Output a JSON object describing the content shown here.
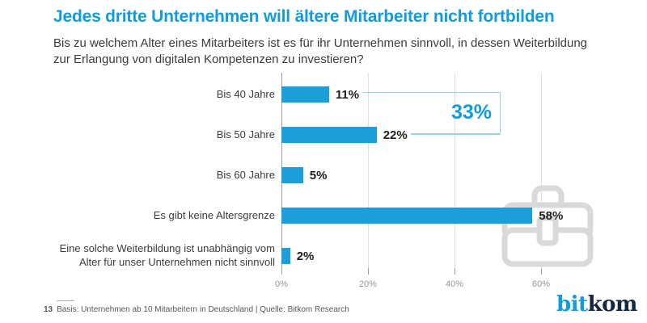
{
  "header": {
    "title": "Jedes dritte Unternehmen will ältere Mitarbeiter nicht fortbilden",
    "subtitle_line1": "Bis zu welchem Alter eines Mitarbeiters ist es für ihr Unternehmen sinnvoll, in dessen Weiterbildung",
    "subtitle_line2": "zur Erlangung von digitalen Kompetenzen zu investieren?"
  },
  "chart_data": {
    "type": "bar",
    "orientation": "horizontal",
    "categories": [
      "Bis 40 Jahre",
      "Bis 50 Jahre",
      "Bis 60 Jahre",
      "Es gibt keine Altersgrenze",
      "Eine solche Weiterbildung ist unabhängig vom Alter für unser Unternehmen nicht sinnvoll"
    ],
    "values": [
      11,
      22,
      5,
      58,
      2
    ],
    "value_labels": [
      "11%",
      "22%",
      "5%",
      "58%",
      "2%"
    ],
    "x_tick_values": [
      0,
      20,
      40,
      60
    ],
    "x_tick_labels": [
      "0%",
      "20%",
      "40%",
      "60%"
    ],
    "xlim": [
      0,
      80
    ],
    "grid": "vertical",
    "legend": "none",
    "bar_color": "#1b9ed9",
    "annotation": {
      "label": "33%",
      "applies_to": [
        "Bis 40 Jahre",
        "Bis 50 Jahre"
      ]
    }
  },
  "watermark": {
    "icon": "briefcase-icon",
    "color": "#d9d9d9"
  },
  "footer": {
    "page_number": "13",
    "source_text": "Basis: Unternehmen ab 10 Mitarbeitern in Deutschland | Quelle: Bitkom Research",
    "logo_part1": "bit",
    "logo_part2": "kom"
  },
  "colors": {
    "accent_blue": "#149bd8",
    "bracket_blue": "#9cd2e7",
    "text_dark": "#3c3c3b",
    "axis_gray": "#9d9d9c"
  }
}
